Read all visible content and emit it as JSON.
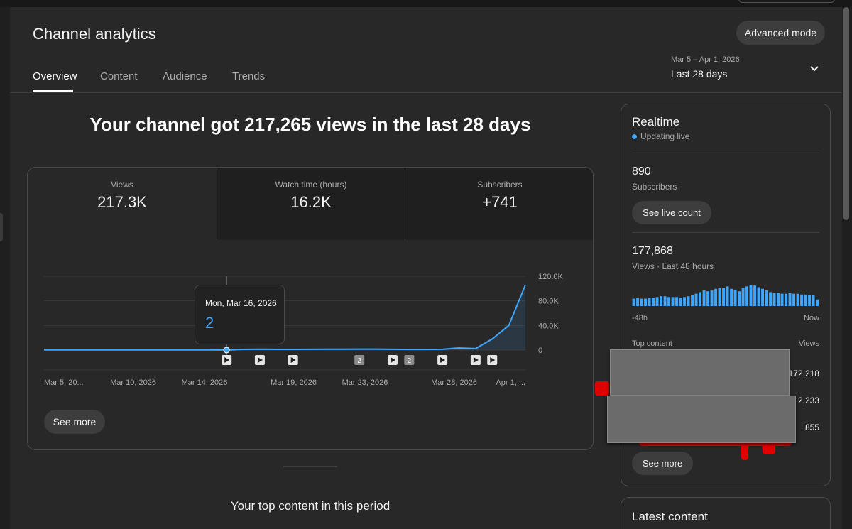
{
  "header": {
    "title": "Channel analytics",
    "advanced_mode": "Advanced mode"
  },
  "tabs": [
    "Overview",
    "Content",
    "Audience",
    "Trends"
  ],
  "date_range": {
    "range": "Mar 5 – Apr 1, 2026",
    "label": "Last 28 days"
  },
  "headline": "Your channel got 217,265 views in the last 28 days",
  "metrics": [
    {
      "label": "Views",
      "value": "217.3K"
    },
    {
      "label": "Watch time (hours)",
      "value": "16.2K"
    },
    {
      "label": "Subscribers",
      "value": "+741"
    }
  ],
  "tooltip": {
    "date": "Mon, Mar 16, 2026",
    "value": "2"
  },
  "see_more": "See more",
  "top_content_title": "Your top content in this period",
  "chart_data": {
    "type": "area",
    "series": [
      {
        "values": [
          300,
          300,
          300,
          300,
          300,
          300,
          300,
          300,
          300,
          300,
          300,
          2,
          1200,
          1500,
          1200,
          1100,
          1300,
          1400,
          1500,
          1600,
          1600,
          1300,
          1000,
          1000,
          1300,
          3500,
          2500,
          18000,
          40000,
          106000
        ]
      }
    ],
    "x_tick_labels": [
      "Mar 5, 20...",
      "Mar 10, 2026",
      "Mar 14, 2026",
      "Mar 19, 2026",
      "Mar 23, 2026",
      "Mar 28, 2026",
      "Apr 1, ..."
    ],
    "y_tick_labels": [
      "120.0K",
      "80.0K",
      "40.0K",
      "0"
    ],
    "ylim": [
      0,
      120000
    ],
    "color": "#3ea6ff",
    "markers": [
      {
        "type": "video",
        "index": 11
      },
      {
        "type": "video",
        "index": 13
      },
      {
        "type": "video",
        "index": 15
      },
      {
        "type": "count",
        "label": "2",
        "index": 19
      },
      {
        "type": "video",
        "index": 21
      },
      {
        "type": "count",
        "label": "2",
        "index": 22
      },
      {
        "type": "video",
        "index": 24
      },
      {
        "type": "video",
        "index": 26
      },
      {
        "type": "video",
        "index": 27
      }
    ]
  },
  "realtime": {
    "title": "Realtime",
    "status": "Updating live",
    "subscribers_value": "890",
    "subscribers_label": "Subscribers",
    "see_live_count": "See live count",
    "views_value": "177,868",
    "views_label": "Views · Last 48 hours",
    "bars": [
      9,
      10,
      9,
      9,
      10,
      10,
      11,
      12,
      12,
      11,
      11,
      11,
      10,
      11,
      12,
      13,
      15,
      17,
      19,
      18,
      19,
      21,
      22,
      22,
      24,
      21,
      20,
      18,
      22,
      24,
      26,
      25,
      23,
      21,
      19,
      17,
      16,
      16,
      15,
      15,
      16,
      15,
      15,
      14,
      14,
      13,
      13,
      8
    ],
    "axis_left": "-48h",
    "axis_right": "Now",
    "top_content_label": "Top content",
    "views_col_label": "Views",
    "rows": [
      "172,218",
      "2,233",
      "855"
    ],
    "see_more": "See more"
  },
  "latest_content": {
    "title": "Latest content"
  }
}
